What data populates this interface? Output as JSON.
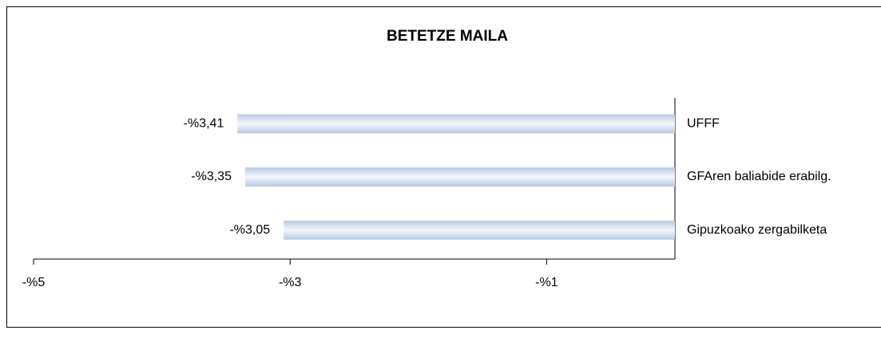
{
  "chart_data": {
    "type": "bar",
    "orientation": "horizontal",
    "title": "BETETZE MAILA",
    "categories": [
      "UFFF",
      "GFAren baliabide erabilg.",
      "Gipuzkoako zergabilketa"
    ],
    "values": [
      -3.41,
      -3.35,
      -3.05
    ],
    "value_labels": [
      "-%3,41",
      "-%3,35",
      "-%3,05"
    ],
    "color": "#b8c9e3",
    "xlim": [
      -5,
      0
    ],
    "xticks": [
      {
        "value": -5,
        "label": "-%5"
      },
      {
        "value": -3,
        "label": "-%3"
      },
      {
        "value": -1,
        "label": "-%1"
      }
    ]
  }
}
